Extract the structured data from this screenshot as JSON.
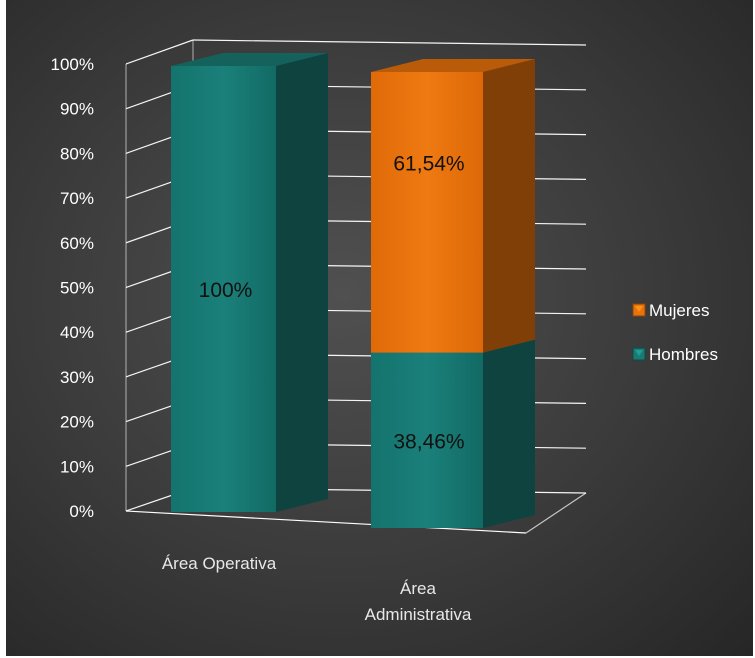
{
  "chart_data": {
    "type": "bar",
    "stacked": true,
    "three_d": true,
    "title": "",
    "xlabel": "",
    "ylabel": "",
    "categories": [
      "Área Operativa",
      "Área\nAdministrativa"
    ],
    "series": [
      {
        "name": "Hombres",
        "values": [
          100,
          38.46
        ],
        "labels": [
          "100%",
          "38,46%"
        ],
        "color": "#1a7a74"
      },
      {
        "name": "Mujeres",
        "values": [
          0,
          61.54
        ],
        "labels": [
          "",
          "61,54%"
        ],
        "color": "#e8720c"
      }
    ],
    "ylim": [
      0,
      100
    ],
    "yticks": [
      "0%",
      "10%",
      "20%",
      "30%",
      "40%",
      "50%",
      "60%",
      "70%",
      "80%",
      "90%",
      "100%"
    ],
    "grid": true,
    "legend": "right",
    "legend_order": [
      "Mujeres",
      "Hombres"
    ]
  },
  "colors": {
    "background": "#3a3a3a",
    "gridline": "#ffffff",
    "hombres": "#1a7a74",
    "mujeres": "#e8720c"
  }
}
